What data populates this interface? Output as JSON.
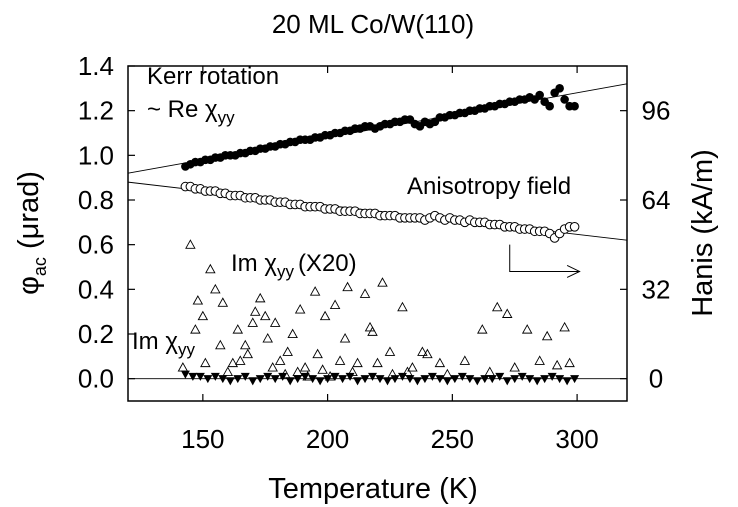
{
  "chart_data": {
    "type": "scatter",
    "title": "20 ML Co/W(110)",
    "xlabel": "Temperature (K)",
    "ylabel": {
      "main": "φ",
      "sub": "ac",
      "unit": " (μrad)"
    },
    "y2label": "Hanis (kA/m)",
    "xlim": [
      120,
      320
    ],
    "ylim": [
      -0.1,
      1.4
    ],
    "y2lim": [
      -8,
      112
    ],
    "x_ticks": [
      150,
      200,
      250,
      300
    ],
    "y_ticks": [
      0.0,
      0.2,
      0.4,
      0.6,
      0.8,
      1.0,
      1.2,
      1.4
    ],
    "y_tick_labels": [
      "0.0",
      "0.2",
      "0.4",
      "0.6",
      "0.8",
      "1.0",
      "1.2",
      "1.4"
    ],
    "y2_ticks": [
      0,
      32,
      64,
      96
    ],
    "y2_tick_labels": [
      "0",
      "32",
      "64",
      "96"
    ],
    "annotations": {
      "kerr_line1": "Kerr rotation",
      "kerr_line2": "~ Re χ",
      "kerr_sub": "yy",
      "anis": "Anisotropy field",
      "imx20_main": "Im χ",
      "imx20_sub": "yy",
      "imx20_tail": "(X20)",
      "im_main": "Im χ",
      "im_sub": "yy"
    },
    "reference_lines": [
      {
        "name": "kerr-fit",
        "x": [
          120,
          320
        ],
        "y": [
          0.92,
          1.32
        ]
      },
      {
        "name": "anisotropy-fit",
        "x": [
          120,
          320
        ],
        "y": [
          0.88,
          0.62
        ]
      },
      {
        "name": "zero-line",
        "x": [
          120,
          320
        ],
        "y": [
          0.0,
          0.0
        ]
      }
    ],
    "arrow": {
      "x": [
        273,
        273,
        301
      ],
      "y": [
        0.6,
        0.48,
        0.48
      ]
    },
    "series": [
      {
        "name": "Kerr rotation ~ Re χyy",
        "marker": "filled-circle",
        "x": [
          143,
          145,
          147,
          149,
          151,
          153,
          155,
          157,
          159,
          161,
          163,
          165,
          167,
          169,
          171,
          173,
          175,
          177,
          179,
          181,
          183,
          185,
          187,
          189,
          191,
          193,
          195,
          197,
          199,
          201,
          203,
          205,
          207,
          209,
          211,
          213,
          215,
          217,
          219,
          221,
          223,
          225,
          227,
          229,
          231,
          233,
          235,
          237,
          239,
          241,
          243,
          245,
          247,
          249,
          251,
          253,
          255,
          257,
          259,
          261,
          263,
          265,
          267,
          269,
          271,
          273,
          275,
          277,
          279,
          281,
          283,
          285,
          287,
          289,
          291,
          293,
          295,
          297,
          299
        ],
        "y": [
          0.95,
          0.96,
          0.97,
          0.97,
          0.98,
          0.98,
          0.99,
          0.99,
          1.0,
          1.0,
          1.0,
          1.01,
          1.01,
          1.02,
          1.02,
          1.03,
          1.03,
          1.04,
          1.04,
          1.05,
          1.05,
          1.06,
          1.06,
          1.07,
          1.07,
          1.07,
          1.08,
          1.08,
          1.09,
          1.09,
          1.1,
          1.1,
          1.11,
          1.11,
          1.12,
          1.12,
          1.13,
          1.13,
          1.12,
          1.13,
          1.14,
          1.14,
          1.15,
          1.15,
          1.16,
          1.16,
          1.14,
          1.13,
          1.15,
          1.14,
          1.15,
          1.17,
          1.17,
          1.18,
          1.18,
          1.19,
          1.19,
          1.2,
          1.2,
          1.21,
          1.21,
          1.22,
          1.22,
          1.23,
          1.23,
          1.24,
          1.24,
          1.25,
          1.25,
          1.26,
          1.25,
          1.27,
          1.24,
          1.22,
          1.28,
          1.3,
          1.25,
          1.22,
          1.22
        ]
      },
      {
        "name": "Anisotropy field",
        "marker": "open-circle",
        "x": [
          143,
          145,
          147,
          149,
          151,
          153,
          155,
          157,
          159,
          161,
          163,
          165,
          167,
          169,
          171,
          173,
          175,
          177,
          179,
          181,
          183,
          185,
          187,
          189,
          191,
          193,
          195,
          197,
          199,
          201,
          203,
          205,
          207,
          209,
          211,
          213,
          215,
          217,
          219,
          221,
          223,
          225,
          227,
          229,
          231,
          233,
          235,
          237,
          239,
          241,
          243,
          245,
          247,
          249,
          251,
          253,
          255,
          257,
          259,
          261,
          263,
          265,
          267,
          269,
          271,
          273,
          275,
          277,
          279,
          281,
          283,
          285,
          287,
          289,
          291,
          293,
          295,
          297,
          299
        ],
        "y": [
          0.86,
          0.86,
          0.85,
          0.85,
          0.84,
          0.84,
          0.84,
          0.83,
          0.83,
          0.82,
          0.82,
          0.82,
          0.81,
          0.81,
          0.81,
          0.8,
          0.8,
          0.8,
          0.79,
          0.79,
          0.79,
          0.78,
          0.78,
          0.78,
          0.77,
          0.77,
          0.77,
          0.77,
          0.76,
          0.76,
          0.76,
          0.75,
          0.75,
          0.75,
          0.75,
          0.74,
          0.74,
          0.74,
          0.74,
          0.73,
          0.73,
          0.73,
          0.73,
          0.72,
          0.72,
          0.72,
          0.72,
          0.72,
          0.71,
          0.72,
          0.73,
          0.72,
          0.71,
          0.72,
          0.71,
          0.71,
          0.7,
          0.71,
          0.7,
          0.7,
          0.7,
          0.69,
          0.69,
          0.69,
          0.68,
          0.68,
          0.68,
          0.67,
          0.67,
          0.67,
          0.66,
          0.66,
          0.66,
          0.65,
          0.63,
          0.65,
          0.67,
          0.68,
          0.68
        ]
      },
      {
        "name": "Im χyy (X20)",
        "marker": "open-triangle",
        "x": [
          142,
          145,
          147,
          148,
          150,
          151,
          153,
          155,
          157,
          158,
          160,
          162,
          164,
          165,
          167,
          168,
          170,
          171,
          173,
          175,
          176,
          178,
          179,
          181,
          183,
          184,
          186,
          188,
          189,
          191,
          192,
          195,
          196,
          198,
          199,
          201,
          203,
          205,
          207,
          208,
          210,
          212,
          215,
          217,
          218,
          220,
          222,
          225,
          226,
          230,
          232,
          234,
          238,
          240,
          245,
          248,
          255,
          262,
          265,
          268,
          272,
          275,
          280,
          285,
          288,
          292,
          295,
          297
        ],
        "y": [
          0.05,
          0.6,
          0.22,
          0.35,
          0.28,
          0.07,
          0.49,
          0.4,
          0.15,
          0.34,
          0.03,
          0.07,
          0.22,
          0.08,
          0.15,
          0.11,
          0.25,
          0.3,
          0.36,
          0.28,
          0.18,
          0.05,
          0.25,
          0.08,
          0.02,
          0.12,
          0.2,
          0.03,
          0.31,
          0.05,
          0.01,
          0.39,
          0.11,
          0.04,
          0.28,
          0.01,
          0.33,
          0.08,
          0.18,
          0.41,
          0.03,
          0.07,
          0.38,
          0.23,
          0.21,
          0.07,
          0.43,
          0.12,
          0.02,
          0.32,
          0.03,
          0.05,
          0.12,
          0.11,
          0.07,
          0.02,
          0.08,
          0.22,
          0.03,
          0.32,
          0.29,
          0.05,
          0.22,
          0.08,
          0.19,
          0.06,
          0.23,
          0.07
        ]
      },
      {
        "name": "Im χyy",
        "marker": "filled-triangle-down",
        "x": [
          143,
          146,
          149,
          152,
          155,
          158,
          161,
          164,
          167,
          170,
          173,
          176,
          179,
          182,
          185,
          188,
          191,
          194,
          197,
          200,
          203,
          206,
          209,
          212,
          215,
          218,
          221,
          224,
          227,
          230,
          233,
          236,
          239,
          242,
          245,
          248,
          251,
          254,
          257,
          260,
          263,
          266,
          269,
          272,
          275,
          278,
          281,
          284,
          287,
          290,
          293,
          296,
          299
        ],
        "y": [
          0.02,
          0.01,
          0.01,
          0.0,
          0.01,
          0.0,
          -0.01,
          0.0,
          0.01,
          -0.01,
          0.0,
          0.01,
          0.0,
          0.01,
          -0.01,
          0.0,
          0.01,
          0.0,
          -0.01,
          0.0,
          0.01,
          0.0,
          0.01,
          -0.01,
          0.0,
          0.01,
          0.0,
          -0.01,
          0.0,
          0.01,
          0.0,
          -0.01,
          0.0,
          0.01,
          0.0,
          -0.01,
          0.0,
          0.01,
          0.0,
          -0.01,
          0.0,
          0.0,
          0.01,
          -0.01,
          0.0,
          0.01,
          0.0,
          -0.01,
          0.0,
          0.01,
          0.0,
          -0.01,
          0.0
        ]
      }
    ]
  }
}
